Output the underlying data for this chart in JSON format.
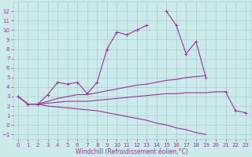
{
  "xlabel": "Windchill (Refroidissement éolien,°C)",
  "x": [
    0,
    1,
    2,
    3,
    4,
    5,
    6,
    7,
    8,
    9,
    10,
    11,
    12,
    13,
    14,
    15,
    16,
    17,
    18,
    19,
    20,
    21,
    22,
    23
  ],
  "line_main": [
    3.0,
    2.2,
    2.2,
    3.2,
    4.5,
    4.3,
    4.5,
    3.3,
    4.5,
    8.0,
    9.8,
    9.5,
    10.0,
    10.5,
    null,
    12.0,
    10.5,
    7.5,
    8.8,
    5.0,
    null,
    3.5,
    1.5,
    1.3
  ],
  "line_upper": [
    3.0,
    2.2,
    2.2,
    2.5,
    2.8,
    3.0,
    3.2,
    3.2,
    3.4,
    3.6,
    3.8,
    4.0,
    4.2,
    4.3,
    4.5,
    4.7,
    4.8,
    5.0,
    5.1,
    5.2,
    null,
    null,
    null,
    null
  ],
  "line_mid": [
    3.0,
    2.2,
    2.2,
    2.3,
    2.4,
    2.5,
    2.5,
    2.5,
    2.6,
    2.7,
    2.8,
    2.9,
    3.0,
    3.1,
    3.2,
    3.3,
    3.3,
    3.4,
    3.4,
    3.4,
    3.5,
    3.5,
    null,
    null
  ],
  "line_down": [
    3.0,
    2.2,
    2.2,
    2.0,
    1.9,
    1.8,
    1.7,
    1.6,
    1.5,
    1.3,
    1.1,
    0.9,
    0.7,
    0.5,
    0.2,
    -0.0,
    -0.3,
    -0.5,
    -0.8,
    -1.0,
    null,
    null,
    null,
    null
  ],
  "ylim": [
    -1.5,
    13.0
  ],
  "xlim": [
    -0.5,
    23.5
  ],
  "yticks": [
    -1,
    0,
    1,
    2,
    3,
    4,
    5,
    6,
    7,
    8,
    9,
    10,
    11,
    12
  ],
  "xticks": [
    0,
    1,
    2,
    3,
    4,
    5,
    6,
    7,
    8,
    9,
    10,
    11,
    12,
    13,
    14,
    15,
    16,
    17,
    18,
    19,
    20,
    21,
    22,
    23
  ],
  "line_color": "#993399",
  "bg_color": "#cceaea",
  "grid_color": "#aacccc",
  "tick_fontsize": 5,
  "xlabel_fontsize": 5.5,
  "lw": 0.8,
  "ms": 2.5
}
